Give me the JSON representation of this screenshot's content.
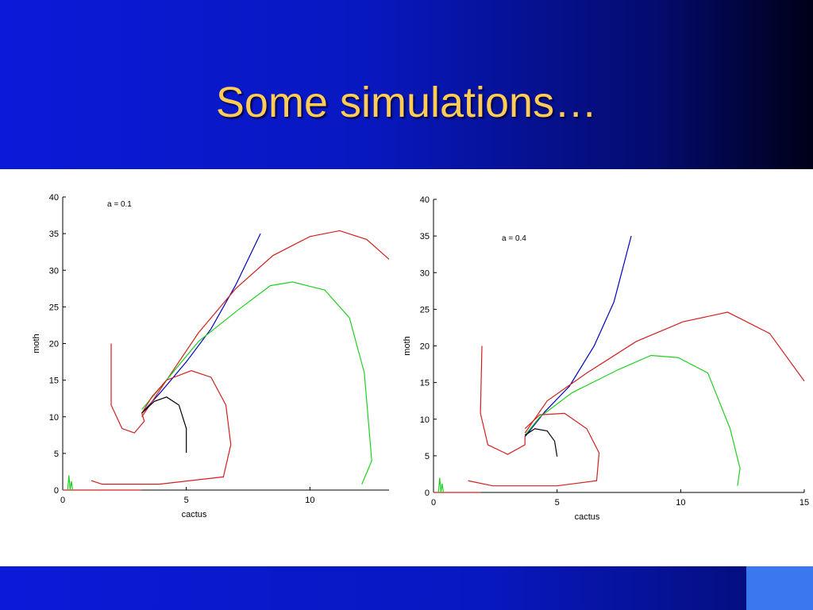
{
  "title": "Some simulations…",
  "chart_data": [
    {
      "type": "line",
      "annotation": "a = 0.1",
      "x_label": "cactus",
      "y_label": "moth",
      "xlim": [
        0,
        13.2
      ],
      "ylim": [
        0,
        40
      ],
      "xticks": [
        0,
        5,
        10
      ],
      "yticks": [
        0,
        5,
        10,
        15,
        20,
        25,
        30,
        35,
        40
      ],
      "series": [
        {
          "color": "#0000c0",
          "x": [
            3.2,
            4,
            5,
            6,
            7,
            8
          ],
          "values": [
            10.5,
            13.5,
            17.5,
            22,
            28,
            35
          ]
        },
        {
          "color": "#d02020",
          "x": [
            13.2,
            12.3,
            11.2,
            10,
            8.5,
            7,
            5.5,
            4.5,
            3.7,
            3.2
          ],
          "values": [
            31.5,
            34.2,
            35.4,
            34.6,
            32,
            27.5,
            21.5,
            16.5,
            12.5,
            10
          ]
        },
        {
          "color": "#20d020",
          "x": [
            12.1,
            12.5,
            12.2,
            11.6,
            10.6,
            9.3,
            8.4,
            7.1,
            5.5,
            3.9,
            3.2
          ],
          "values": [
            0.8,
            4,
            16,
            23.5,
            27.3,
            28.4,
            27.9,
            24.6,
            20.3,
            13.8,
            11
          ]
        },
        {
          "color": "#d02020",
          "x": [
            1.96,
            1.96,
            2.4,
            2.9,
            3.3,
            3.2
          ],
          "values": [
            20,
            11.6,
            8.4,
            7.8,
            9.4,
            10.5
          ]
        },
        {
          "color": "#d02020",
          "x": [
            1.15,
            1.6,
            3.9,
            6.5,
            6.8,
            6.6,
            6,
            5.2,
            4.2,
            3.6,
            3.2
          ],
          "values": [
            1.3,
            0.8,
            0.8,
            1.8,
            6.2,
            11.6,
            15.4,
            16.3,
            15,
            12.7,
            10.5
          ]
        },
        {
          "color": "#000000",
          "x": [
            5,
            5,
            4.7,
            4.2,
            3.7,
            3.2
          ],
          "values": [
            5.1,
            8.4,
            11.6,
            12.7,
            12.1,
            10.5
          ]
        },
        {
          "color": "#d02020",
          "x": [
            0,
            3.2
          ],
          "values": [
            0,
            0
          ]
        },
        {
          "color": "#20d020",
          "x": [
            0.2,
            0.25,
            0.3,
            0.35,
            0.4
          ],
          "values": [
            0,
            2,
            0,
            1.2,
            0
          ]
        }
      ]
    },
    {
      "type": "line",
      "annotation": "a = 0.4",
      "x_label": "cactus",
      "y_label": "moth",
      "xlim": [
        0,
        15
      ],
      "ylim": [
        0,
        40
      ],
      "xticks": [
        0,
        5,
        10,
        15
      ],
      "yticks": [
        0,
        5,
        10,
        15,
        20,
        25,
        30,
        35,
        40
      ],
      "series": [
        {
          "color": "#0000c0",
          "x": [
            3.7,
            4.5,
            5.5,
            6.5,
            7.3,
            8
          ],
          "values": [
            7.6,
            11,
            14.5,
            20,
            26,
            35
          ]
        },
        {
          "color": "#d02020",
          "x": [
            15,
            13.6,
            11.9,
            10.1,
            8.2,
            6.2,
            4.6,
            3.7
          ],
          "values": [
            15.2,
            21.7,
            24.6,
            23.3,
            20.6,
            16.3,
            12.5,
            8.1
          ]
        },
        {
          "color": "#20d020",
          "x": [
            12.3,
            12.4,
            12,
            11.1,
            9.9,
            8.8,
            7.5,
            5.6,
            4.3,
            3.7
          ],
          "values": [
            0.9,
            3.3,
            8.7,
            16.3,
            18.4,
            18.7,
            16.8,
            13.6,
            10.3,
            7.8
          ]
        },
        {
          "color": "#d02020",
          "x": [
            1.96,
            1.9,
            2.2,
            3,
            3.7,
            3.7
          ],
          "values": [
            20,
            10.8,
            6.5,
            5.2,
            6.5,
            7.6
          ]
        },
        {
          "color": "#d02020",
          "x": [
            1.4,
            2.4,
            5,
            6.6,
            6.7,
            6.2,
            5.3,
            4.3,
            3.7
          ],
          "values": [
            1.6,
            0.9,
            0.9,
            1.6,
            5.4,
            8.7,
            10.8,
            10.6,
            8.7
          ]
        },
        {
          "color": "#000000",
          "x": [
            5,
            4.9,
            4.6,
            4.1,
            3.7
          ],
          "values": [
            4.9,
            7,
            8.4,
            8.7,
            7.8
          ]
        },
        {
          "color": "#d02020",
          "x": [
            0,
            1.9
          ],
          "values": [
            0,
            0
          ]
        },
        {
          "color": "#20d020",
          "x": [
            0.2,
            0.25,
            0.3,
            0.35,
            0.4
          ],
          "values": [
            0,
            2,
            0,
            1.2,
            0
          ]
        }
      ]
    }
  ]
}
